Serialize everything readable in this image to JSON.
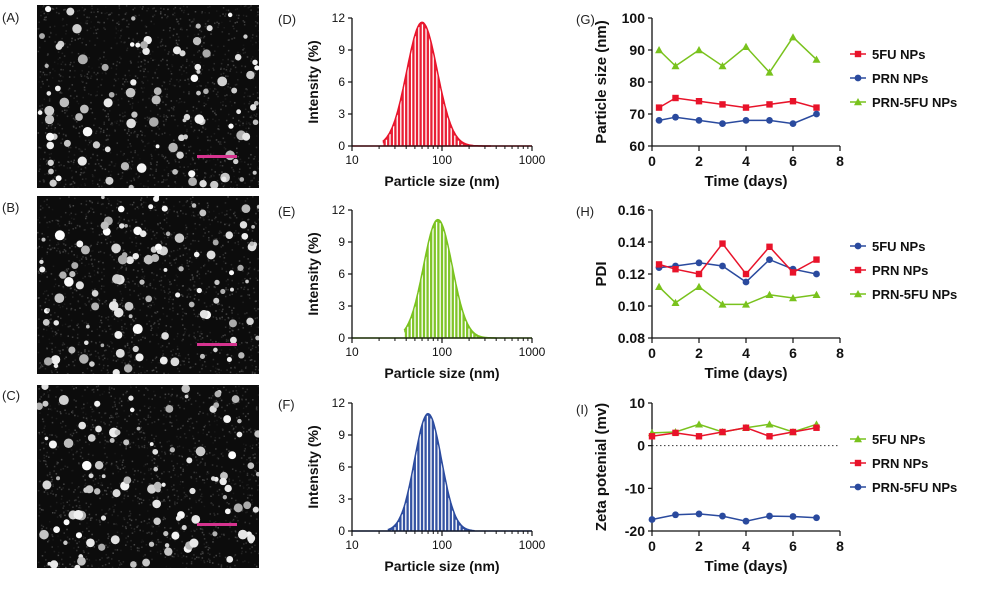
{
  "panel_labels": {
    "A": "(A)",
    "B": "(B)",
    "C": "(C)",
    "D": "(D)",
    "E": "(E)",
    "F": "(F)",
    "G": "(G)",
    "H": "(H)",
    "I": "(I)"
  },
  "colors": {
    "red": "#e8132a",
    "green": "#79c21d",
    "blue": "#2a4a9e",
    "scalebar": "#d6338f"
  },
  "micrographs": [
    {
      "id": "A",
      "type": "TEM image",
      "scale_bar": true
    },
    {
      "id": "B",
      "type": "TEM image",
      "scale_bar": true
    },
    {
      "id": "C",
      "type": "TEM image",
      "scale_bar": true
    }
  ],
  "chart_data": [
    {
      "id": "D",
      "type": "bar",
      "scale": "log",
      "xlabel": "Particle size (nm)",
      "ylabel": "Intensity (%)",
      "xlim": [
        10,
        1000
      ],
      "ylim": [
        0,
        12
      ],
      "xticks": [
        "10",
        "100",
        "1000"
      ],
      "yticks": [
        "0",
        "3",
        "6",
        "9",
        "12"
      ],
      "color": "#e8132a",
      "distribution": {
        "peak_nm": 60,
        "peak_intensity": 11.6,
        "sigma_log10": 0.17,
        "range_nm": [
          22,
          350
        ]
      }
    },
    {
      "id": "E",
      "type": "bar",
      "scale": "log",
      "xlabel": "Particle size (nm)",
      "ylabel": "Intensity (%)",
      "xlim": [
        10,
        1000
      ],
      "ylim": [
        0,
        12
      ],
      "xticks": [
        "10",
        "100",
        "1000"
      ],
      "yticks": [
        "0",
        "3",
        "6",
        "9",
        "12"
      ],
      "color": "#79c21d",
      "distribution": {
        "peak_nm": 90,
        "peak_intensity": 11.1,
        "sigma_log10": 0.16,
        "range_nm": [
          38,
          400
        ]
      }
    },
    {
      "id": "F",
      "type": "bar",
      "scale": "log",
      "xlabel": "Particle size (nm)",
      "ylabel": "Intensity (%)",
      "xlim": [
        10,
        1000
      ],
      "ylim": [
        0,
        12
      ],
      "xticks": [
        "10",
        "100",
        "1000"
      ],
      "yticks": [
        "0",
        "3",
        "6",
        "9",
        "12"
      ],
      "color": "#2a4a9e",
      "distribution": {
        "peak_nm": 70,
        "peak_intensity": 11.0,
        "sigma_log10": 0.15,
        "range_nm": [
          25,
          230
        ]
      }
    },
    {
      "id": "G",
      "type": "line",
      "xlabel": "Time (days)",
      "ylabel": "Particle size (nm)",
      "xlim": [
        0,
        8
      ],
      "ylim": [
        60,
        100
      ],
      "xticks": [
        "0",
        "2",
        "4",
        "6",
        "8"
      ],
      "yticks": [
        "60",
        "70",
        "80",
        "90",
        "100"
      ],
      "legend": "right",
      "x": [
        0.3,
        1,
        2,
        3,
        4,
        5,
        6,
        7
      ],
      "series": [
        {
          "name": "5FU NPs",
          "color": "#e8132a",
          "marker": "square",
          "values": [
            72,
            75,
            74,
            73,
            72,
            73,
            74,
            72
          ]
        },
        {
          "name": "PRN NPs",
          "color": "#2a4a9e",
          "marker": "circle",
          "values": [
            68,
            69,
            68,
            67,
            68,
            68,
            67,
            70
          ]
        },
        {
          "name": "PRN-5FU NPs",
          "color": "#79c21d",
          "marker": "triangle",
          "values": [
            90,
            85,
            90,
            85,
            91,
            83,
            94,
            87
          ]
        }
      ]
    },
    {
      "id": "H",
      "type": "line",
      "xlabel": "Time (days)",
      "ylabel": "PDI",
      "xlim": [
        0,
        8
      ],
      "ylim": [
        0.08,
        0.16
      ],
      "xticks": [
        "0",
        "2",
        "4",
        "6",
        "8"
      ],
      "yticks": [
        "0.08",
        "0.10",
        "0.12",
        "0.14",
        "0.16"
      ],
      "legend": "right",
      "x": [
        0.3,
        1,
        2,
        3,
        4,
        5,
        6,
        7
      ],
      "series": [
        {
          "name": "5FU NPs",
          "color": "#2a4a9e",
          "marker": "circle",
          "values": [
            0.124,
            0.125,
            0.127,
            0.125,
            0.115,
            0.129,
            0.123,
            0.12
          ]
        },
        {
          "name": "PRN NPs",
          "color": "#e8132a",
          "marker": "square",
          "values": [
            0.126,
            0.123,
            0.12,
            0.139,
            0.12,
            0.137,
            0.121,
            0.129
          ]
        },
        {
          "name": "PRN-5FU NPs",
          "color": "#79c21d",
          "marker": "triangle",
          "values": [
            0.112,
            0.102,
            0.112,
            0.101,
            0.101,
            0.107,
            0.105,
            0.107
          ]
        }
      ]
    },
    {
      "id": "I",
      "type": "line",
      "xlabel": "Time (days)",
      "ylabel": "Zeta potenial (mv)",
      "xlim": [
        0,
        8
      ],
      "ylim": [
        -20,
        10
      ],
      "xticks": [
        "0",
        "2",
        "4",
        "6",
        "8"
      ],
      "yticks": [
        "-20",
        "-10",
        "0",
        "10"
      ],
      "zero_line": true,
      "legend": "right",
      "x": [
        0,
        1,
        2,
        3,
        4,
        5,
        6,
        7
      ],
      "series": [
        {
          "name": "5FU NPs",
          "color": "#79c21d",
          "marker": "triangle",
          "values": [
            3,
            3.2,
            5,
            3.2,
            4.2,
            5,
            3.2,
            5
          ]
        },
        {
          "name": "PRN NPs",
          "color": "#e8132a",
          "marker": "square",
          "values": [
            2.2,
            3,
            2.2,
            3.2,
            4.2,
            2.2,
            3.2,
            4.2
          ]
        },
        {
          "name": "PRN-5FU NPs",
          "color": "#2a4a9e",
          "marker": "circle",
          "values": [
            -17.3,
            -16.2,
            -16,
            -16.5,
            -17.7,
            -16.5,
            -16.6,
            -16.9
          ]
        }
      ]
    }
  ]
}
